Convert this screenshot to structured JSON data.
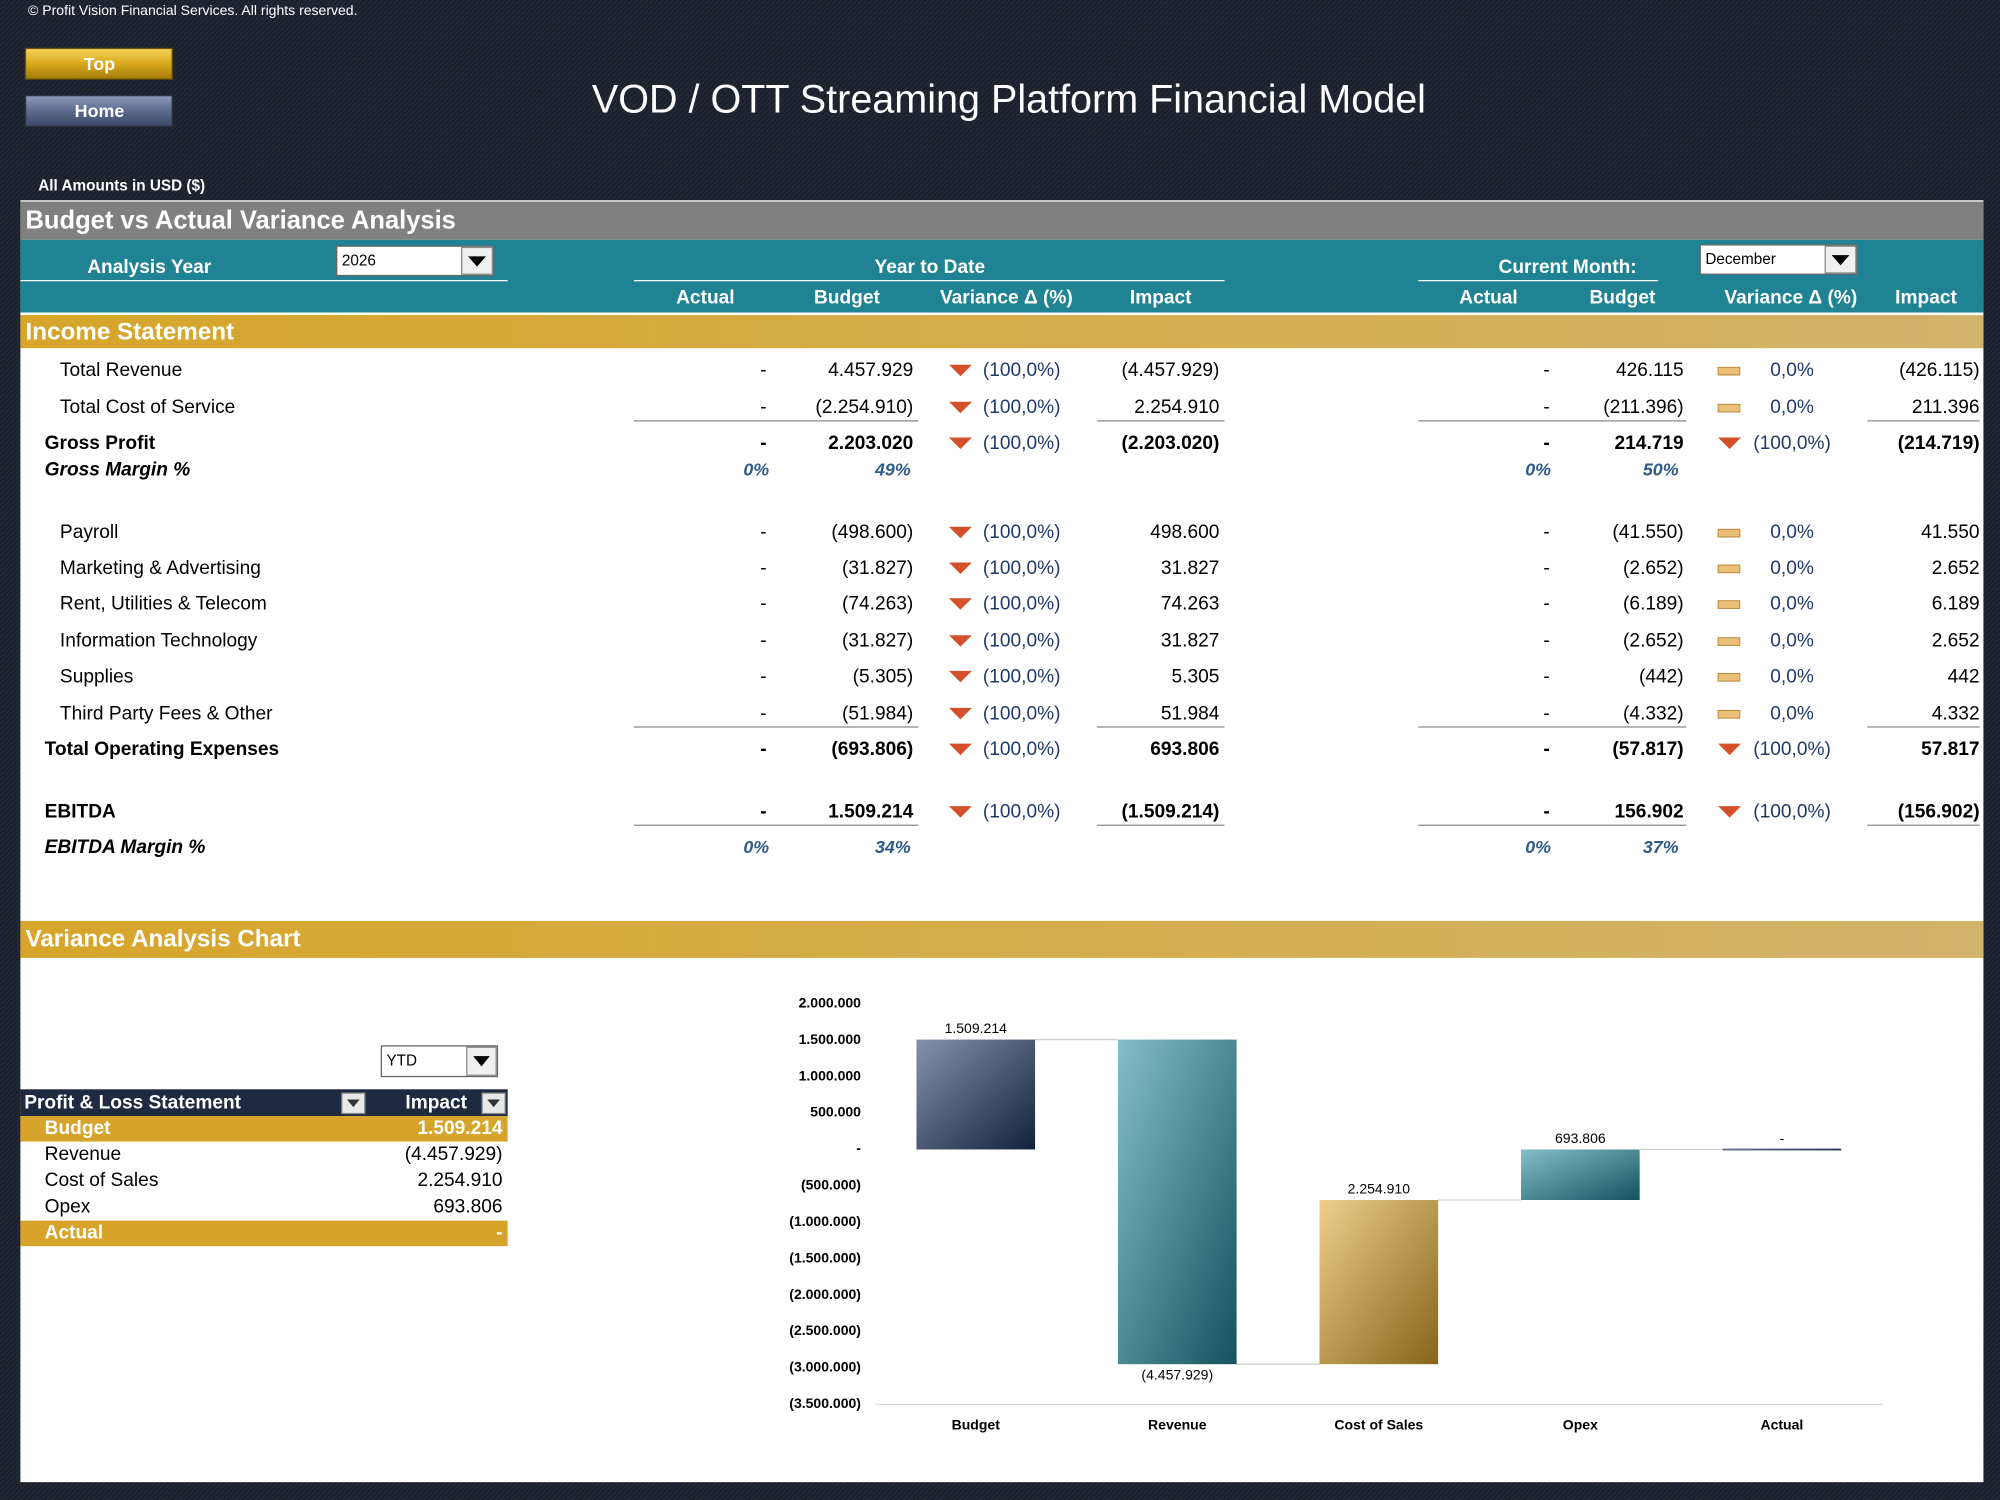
{
  "header": {
    "copyright": "© Profit Vision Financial Services. All rights reserved.",
    "buttons": [
      "Top",
      "Home"
    ],
    "title": "VOD / OTT Streaming Platform Financial Model",
    "currency_note": "All Amounts in  USD ($)"
  },
  "analysis": {
    "title": "Budget vs Actual Variance Analysis",
    "year_label": "Analysis Year",
    "year": "2026",
    "ytd_label": "Year to Date",
    "month_label": "Current Month:",
    "month": "December",
    "columns": [
      "Actual",
      "Budget",
      "Variance Δ  (%)",
      "Impact"
    ]
  },
  "income_statement": {
    "title": "Income Statement",
    "rows": [
      {
        "label": "Total Revenue",
        "style": "item",
        "ytd": [
          "-",
          "4.457.929",
          "(100,0%)",
          "(4.457.929)"
        ],
        "ytd_icon": "down",
        "month": [
          "-",
          "426.115",
          "0,0%",
          "(426.115)"
        ],
        "month_icon": "flat"
      },
      {
        "label": "Total Cost of Service",
        "style": "item",
        "rule_below": true,
        "ytd": [
          "-",
          "(2.254.910)",
          "(100,0%)",
          "2.254.910"
        ],
        "ytd_icon": "down",
        "month": [
          "-",
          "(211.396)",
          "0,0%",
          "211.396"
        ],
        "month_icon": "flat"
      },
      {
        "label": "Gross Profit",
        "style": "total",
        "ytd": [
          "-",
          "2.203.020",
          "(100,0%)",
          "(2.203.020)"
        ],
        "ytd_icon": "down",
        "month": [
          "-",
          "214.719",
          "(100,0%)",
          "(214.719)"
        ],
        "month_icon": "down"
      },
      {
        "label": "Gross Margin %",
        "style": "pct",
        "ytd": [
          "0%",
          "49%"
        ],
        "month": [
          "0%",
          "50%"
        ]
      },
      {
        "label": "Payroll",
        "style": "item",
        "ytd": [
          "-",
          "(498.600)",
          "(100,0%)",
          "498.600"
        ],
        "ytd_icon": "down",
        "month": [
          "-",
          "(41.550)",
          "0,0%",
          "41.550"
        ],
        "month_icon": "flat"
      },
      {
        "label": "Marketing & Advertising",
        "style": "item",
        "ytd": [
          "-",
          "(31.827)",
          "(100,0%)",
          "31.827"
        ],
        "ytd_icon": "down",
        "month": [
          "-",
          "(2.652)",
          "0,0%",
          "2.652"
        ],
        "month_icon": "flat"
      },
      {
        "label": "Rent, Utilities & Telecom",
        "style": "item",
        "ytd": [
          "-",
          "(74.263)",
          "(100,0%)",
          "74.263"
        ],
        "ytd_icon": "down",
        "month": [
          "-",
          "(6.189)",
          "0,0%",
          "6.189"
        ],
        "month_icon": "flat"
      },
      {
        "label": "Information Technology",
        "style": "item",
        "ytd": [
          "-",
          "(31.827)",
          "(100,0%)",
          "31.827"
        ],
        "ytd_icon": "down",
        "month": [
          "-",
          "(2.652)",
          "0,0%",
          "2.652"
        ],
        "month_icon": "flat"
      },
      {
        "label": "Supplies",
        "style": "item",
        "ytd": [
          "-",
          "(5.305)",
          "(100,0%)",
          "5.305"
        ],
        "ytd_icon": "down",
        "month": [
          "-",
          "(442)",
          "0,0%",
          "442"
        ],
        "month_icon": "flat"
      },
      {
        "label": "Third Party Fees & Other",
        "style": "item",
        "rule_below": true,
        "ytd": [
          "-",
          "(51.984)",
          "(100,0%)",
          "51.984"
        ],
        "ytd_icon": "down",
        "month": [
          "-",
          "(4.332)",
          "0,0%",
          "4.332"
        ],
        "month_icon": "flat"
      },
      {
        "label": "Total Operating Expenses",
        "style": "total",
        "ytd": [
          "-",
          "(693.806)",
          "(100,0%)",
          "693.806"
        ],
        "ytd_icon": "down",
        "month": [
          "-",
          "(57.817)",
          "(100,0%)",
          "57.817"
        ],
        "month_icon": "down"
      },
      {
        "label": "EBITDA",
        "style": "total",
        "rule_below": true,
        "ytd": [
          "-",
          "1.509.214",
          "(100,0%)",
          "(1.509.214)"
        ],
        "ytd_icon": "down",
        "month": [
          "-",
          "156.902",
          "(100,0%)",
          "(156.902)"
        ],
        "month_icon": "down"
      },
      {
        "label": "EBITDA Margin %",
        "style": "pct",
        "ytd": [
          "0%",
          "34%"
        ],
        "month": [
          "0%",
          "37%"
        ]
      }
    ]
  },
  "chart_section": {
    "title": "Variance Analysis Chart",
    "period": "YTD",
    "table": {
      "header": [
        "Profit & Loss Statement",
        "Impact"
      ],
      "rows": [
        [
          "Budget",
          "1.509.214"
        ],
        [
          "Revenue",
          "(4.457.929)"
        ],
        [
          "Cost of Sales",
          "2.254.910"
        ],
        [
          "Opex",
          "693.806"
        ],
        [
          "Actual",
          "-"
        ]
      ],
      "highlight": [
        true,
        false,
        false,
        false,
        true
      ]
    }
  },
  "chart_data": {
    "type": "waterfall",
    "categories": [
      "Budget",
      "Revenue",
      "Cost of Sales",
      "Opex",
      "Actual"
    ],
    "values": [
      1509214,
      -4457929,
      2254910,
      693806,
      0
    ],
    "value_labels": [
      "1.509.214",
      "(4.457.929)",
      "2.254.910",
      "693.806",
      "-"
    ],
    "measure": [
      "total",
      "relative",
      "relative",
      "relative",
      "total"
    ],
    "colors": [
      "#1f3864",
      "#1f8a9c",
      "#e0a82a",
      "#1f8a9c",
      "#1f3864"
    ],
    "ylim": [
      -3500000,
      2000000
    ],
    "yticks": [
      {
        "value": 2000000,
        "label": "2.000.000"
      },
      {
        "value": 1500000,
        "label": "1.500.000"
      },
      {
        "value": 1000000,
        "label": "1.000.000"
      },
      {
        "value": 500000,
        "label": "500.000"
      },
      {
        "value": 0,
        "label": "-"
      },
      {
        "value": -500000,
        "label": "(500.000)"
      },
      {
        "value": -1000000,
        "label": "(1.000.000)"
      },
      {
        "value": -1500000,
        "label": "(1.500.000)"
      },
      {
        "value": -2000000,
        "label": "(2.000.000)"
      },
      {
        "value": -2500000,
        "label": "(2.500.000)"
      },
      {
        "value": -3000000,
        "label": "(3.000.000)"
      },
      {
        "value": -3500000,
        "label": "(3.500.000)"
      }
    ]
  }
}
